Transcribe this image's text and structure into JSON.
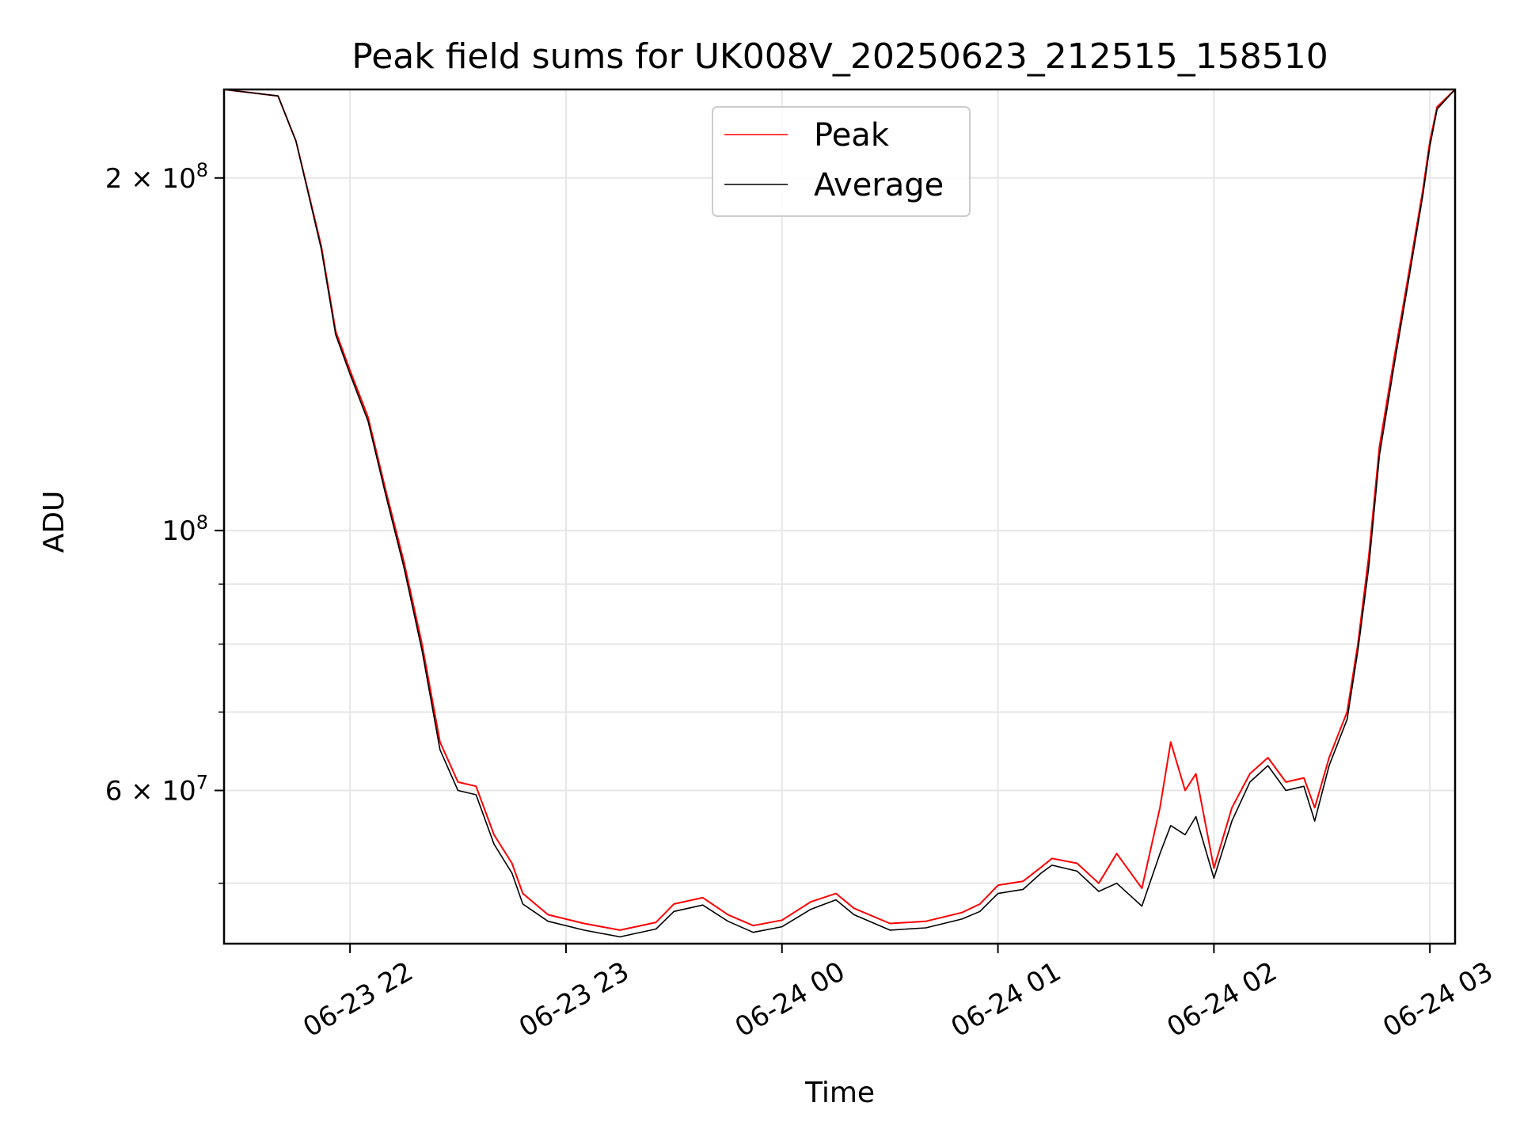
{
  "chart_data": {
    "type": "line",
    "title": "Peak field sums for UK008V_20250623_212515_158510",
    "xlabel": "Time",
    "ylabel": "ADU",
    "y_scale": "log",
    "ylim": [
      44400000,
      238000000
    ],
    "xlim": [
      "2025-06-23 21:25:00",
      "2025-06-24 03:07:00"
    ],
    "x_ticks": [
      {
        "value": "2025-06-23 22:00",
        "label": "06-23 22"
      },
      {
        "value": "2025-06-23 23:00",
        "label": "06-23 23"
      },
      {
        "value": "2025-06-24 00:00",
        "label": "06-24 00"
      },
      {
        "value": "2025-06-24 01:00",
        "label": "06-24 01"
      },
      {
        "value": "2025-06-24 02:00",
        "label": "06-24 02"
      },
      {
        "value": "2025-06-24 03:00",
        "label": "06-24 03"
      }
    ],
    "y_major_ticks": [
      {
        "value": 60000000,
        "mantissa": "6",
        "base": "10",
        "exp": "7"
      },
      {
        "value": 100000000,
        "mantissa": "",
        "base": "10",
        "exp": "8"
      },
      {
        "value": 200000000,
        "mantissa": "2",
        "base": "10",
        "exp": "8"
      }
    ],
    "y_minor_ticks": [
      50000000,
      70000000,
      80000000,
      90000000
    ],
    "grid": true,
    "legend_position": "top-center",
    "series": [
      {
        "name": "Peak",
        "color": "#ff0000",
        "points": [
          [
            "2025-06-23 21:25",
            238000000
          ],
          [
            "2025-06-23 21:40",
            235000000
          ],
          [
            "2025-06-23 21:45",
            215000000
          ],
          [
            "2025-06-23 21:52",
            175000000
          ],
          [
            "2025-06-23 21:56",
            148000000
          ],
          [
            "2025-06-23 22:00",
            137000000
          ],
          [
            "2025-06-23 22:05",
            125000000
          ],
          [
            "2025-06-23 22:10",
            108000000
          ],
          [
            "2025-06-23 22:15",
            94000000
          ],
          [
            "2025-06-23 22:20",
            80000000
          ],
          [
            "2025-06-23 22:25",
            66000000
          ],
          [
            "2025-06-23 22:30",
            61000000
          ],
          [
            "2025-06-23 22:35",
            60500000
          ],
          [
            "2025-06-23 22:40",
            55000000
          ],
          [
            "2025-06-23 22:45",
            52000000
          ],
          [
            "2025-06-23 22:48",
            49000000
          ],
          [
            "2025-06-23 22:55",
            47000000
          ],
          [
            "2025-06-23 23:05",
            46200000
          ],
          [
            "2025-06-23 23:15",
            45600000
          ],
          [
            "2025-06-23 23:25",
            46300000
          ],
          [
            "2025-06-23 23:30",
            48000000
          ],
          [
            "2025-06-23 23:38",
            48600000
          ],
          [
            "2025-06-23 23:45",
            47000000
          ],
          [
            "2025-06-23 23:52",
            46000000
          ],
          [
            "2025-06-24 00:00",
            46500000
          ],
          [
            "2025-06-24 00:08",
            48200000
          ],
          [
            "2025-06-24 00:15",
            49000000
          ],
          [
            "2025-06-24 00:20",
            47600000
          ],
          [
            "2025-06-24 00:30",
            46200000
          ],
          [
            "2025-06-24 00:40",
            46400000
          ],
          [
            "2025-06-24 00:50",
            47200000
          ],
          [
            "2025-06-24 00:55",
            48000000
          ],
          [
            "2025-06-24 01:00",
            49800000
          ],
          [
            "2025-06-24 01:07",
            50200000
          ],
          [
            "2025-06-24 01:12",
            51600000
          ],
          [
            "2025-06-24 01:15",
            52500000
          ],
          [
            "2025-06-24 01:22",
            52000000
          ],
          [
            "2025-06-24 01:28",
            50000000
          ],
          [
            "2025-06-24 01:33",
            53000000
          ],
          [
            "2025-06-24 01:40",
            49500000
          ],
          [
            "2025-06-24 01:45",
            58000000
          ],
          [
            "2025-06-24 01:48",
            66000000
          ],
          [
            "2025-06-24 01:52",
            60000000
          ],
          [
            "2025-06-24 01:55",
            62000000
          ],
          [
            "2025-06-24 02:00",
            51500000
          ],
          [
            "2025-06-24 02:05",
            58000000
          ],
          [
            "2025-06-24 02:10",
            62000000
          ],
          [
            "2025-06-24 02:15",
            64000000
          ],
          [
            "2025-06-24 02:20",
            61000000
          ],
          [
            "2025-06-24 02:25",
            61500000
          ],
          [
            "2025-06-24 02:28",
            58000000
          ],
          [
            "2025-06-24 02:32",
            64000000
          ],
          [
            "2025-06-24 02:37",
            70000000
          ],
          [
            "2025-06-24 02:40",
            80000000
          ],
          [
            "2025-06-24 02:43",
            95000000
          ],
          [
            "2025-06-24 02:46",
            118000000
          ],
          [
            "2025-06-24 02:50",
            140000000
          ],
          [
            "2025-06-24 02:54",
            165000000
          ],
          [
            "2025-06-24 02:58",
            195000000
          ],
          [
            "2025-06-24 03:00",
            215000000
          ],
          [
            "2025-06-24 03:02",
            230000000
          ],
          [
            "2025-06-24 03:07",
            238000000
          ]
        ]
      },
      {
        "name": "Average",
        "color": "#000000",
        "points": [
          [
            "2025-06-23 21:25",
            238000000
          ],
          [
            "2025-06-23 21:40",
            235000000
          ],
          [
            "2025-06-23 21:45",
            215000000
          ],
          [
            "2025-06-23 21:52",
            174000000
          ],
          [
            "2025-06-23 21:56",
            147000000
          ],
          [
            "2025-06-23 22:00",
            136000000
          ],
          [
            "2025-06-23 22:05",
            124000000
          ],
          [
            "2025-06-23 22:10",
            107000000
          ],
          [
            "2025-06-23 22:15",
            93000000
          ],
          [
            "2025-06-23 22:20",
            79000000
          ],
          [
            "2025-06-23 22:25",
            65000000
          ],
          [
            "2025-06-23 22:30",
            60000000
          ],
          [
            "2025-06-23 22:35",
            59500000
          ],
          [
            "2025-06-23 22:40",
            54000000
          ],
          [
            "2025-06-23 22:45",
            51000000
          ],
          [
            "2025-06-23 22:48",
            48000000
          ],
          [
            "2025-06-23 22:55",
            46400000
          ],
          [
            "2025-06-23 23:05",
            45600000
          ],
          [
            "2025-06-23 23:15",
            45000000
          ],
          [
            "2025-06-23 23:25",
            45700000
          ],
          [
            "2025-06-23 23:30",
            47300000
          ],
          [
            "2025-06-23 23:38",
            47900000
          ],
          [
            "2025-06-23 23:45",
            46400000
          ],
          [
            "2025-06-23 23:52",
            45400000
          ],
          [
            "2025-06-24 00:00",
            45900000
          ],
          [
            "2025-06-24 00:08",
            47500000
          ],
          [
            "2025-06-24 00:15",
            48400000
          ],
          [
            "2025-06-24 00:20",
            47000000
          ],
          [
            "2025-06-24 00:30",
            45600000
          ],
          [
            "2025-06-24 00:40",
            45800000
          ],
          [
            "2025-06-24 00:50",
            46600000
          ],
          [
            "2025-06-24 00:55",
            47300000
          ],
          [
            "2025-06-24 01:00",
            49000000
          ],
          [
            "2025-06-24 01:07",
            49400000
          ],
          [
            "2025-06-24 01:12",
            51000000
          ],
          [
            "2025-06-24 01:15",
            51800000
          ],
          [
            "2025-06-24 01:22",
            51200000
          ],
          [
            "2025-06-24 01:28",
            49200000
          ],
          [
            "2025-06-24 01:33",
            50000000
          ],
          [
            "2025-06-24 01:40",
            47800000
          ],
          [
            "2025-06-24 01:45",
            53000000
          ],
          [
            "2025-06-24 01:48",
            56000000
          ],
          [
            "2025-06-24 01:52",
            55000000
          ],
          [
            "2025-06-24 01:55",
            57000000
          ],
          [
            "2025-06-24 02:00",
            50500000
          ],
          [
            "2025-06-24 02:05",
            56500000
          ],
          [
            "2025-06-24 02:10",
            61000000
          ],
          [
            "2025-06-24 02:15",
            63000000
          ],
          [
            "2025-06-24 02:20",
            60000000
          ],
          [
            "2025-06-24 02:25",
            60500000
          ],
          [
            "2025-06-24 02:28",
            56500000
          ],
          [
            "2025-06-24 02:32",
            63000000
          ],
          [
            "2025-06-24 02:37",
            69000000
          ],
          [
            "2025-06-24 02:40",
            79000000
          ],
          [
            "2025-06-24 02:43",
            93000000
          ],
          [
            "2025-06-24 02:46",
            116000000
          ],
          [
            "2025-06-24 02:50",
            138000000
          ],
          [
            "2025-06-24 02:54",
            163000000
          ],
          [
            "2025-06-24 02:58",
            193000000
          ],
          [
            "2025-06-24 03:00",
            213000000
          ],
          [
            "2025-06-24 03:02",
            229000000
          ],
          [
            "2025-06-24 03:07",
            238000000
          ]
        ]
      }
    ]
  }
}
